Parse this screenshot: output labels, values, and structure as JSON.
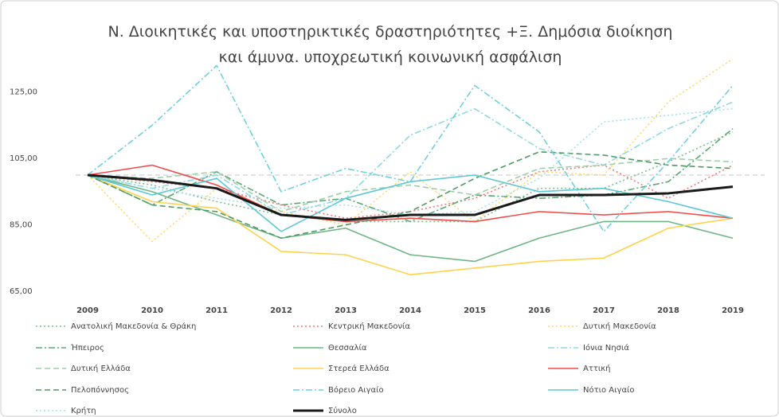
{
  "chart_data": {
    "type": "line",
    "title": "Ν. Διοικητικές και υποστηρικτικές δραστηριότητες +Ξ. Δημόσια διοίκηση και άμυνα. υποχρεωτική κοινωνική ασφάλιση",
    "categories": [
      "2009",
      "2010",
      "2011",
      "2012",
      "2013",
      "2014",
      "2015",
      "2016",
      "2017",
      "2018",
      "2019"
    ],
    "ylim": [
      65,
      135
    ],
    "yticks": [
      {
        "value": 65,
        "label": "65,00"
      },
      {
        "value": 85,
        "label": "85,00"
      },
      {
        "value": 105,
        "label": "105,00"
      },
      {
        "value": 125,
        "label": "125,00"
      }
    ],
    "reference_line": 100,
    "series": [
      {
        "name": "Ανατολική Μακεδονία & Θράκη",
        "color": "#7dbf8e",
        "dash": "2,3",
        "values": [
          100,
          97,
          92,
          88,
          86,
          86,
          86,
          96,
          96,
          104,
          113
        ]
      },
      {
        "name": "Κεντρική Μακεδονία",
        "color": "#f07b7b",
        "dash": "2,3",
        "values": [
          100,
          98,
          96,
          91,
          87,
          89,
          93,
          101,
          103,
          93,
          103
        ]
      },
      {
        "name": "Δυτική Μακεδονία",
        "color": "#ffd966",
        "dash": "2,3",
        "values": [
          100,
          80,
          96,
          89,
          85,
          101,
          86,
          101,
          100,
          122,
          135
        ]
      },
      {
        "name": "Ήπειρος",
        "color": "#5aa874",
        "dash": "8,3,2,3",
        "values": [
          100,
          91,
          101,
          91,
          93,
          86,
          94,
          93,
          94,
          98,
          114
        ]
      },
      {
        "name": "Θεσσαλία",
        "color": "#6fb585",
        "dash": "",
        "values": [
          100,
          95,
          88,
          81,
          84,
          76,
          74,
          81,
          86,
          86,
          81
        ]
      },
      {
        "name": "Ιόνια Νησιά",
        "color": "#8fd8e0",
        "dash": "8,3,2,3",
        "values": [
          100,
          96,
          100,
          88,
          93,
          112,
          120,
          108,
          103,
          114,
          122
        ]
      },
      {
        "name": "Δυτική Ελλάδα",
        "color": "#9ccfa8",
        "dash": "7,4",
        "values": [
          100,
          99,
          101,
          89,
          95,
          97,
          94,
          102,
          103,
          105,
          104
        ]
      },
      {
        "name": "Στερεά Ελλάδα",
        "color": "#ffd24d",
        "dash": "",
        "values": [
          100,
          92,
          90,
          77,
          76,
          70,
          72,
          74,
          75,
          84,
          87
        ]
      },
      {
        "name": "Αττική",
        "color": "#f04b4b",
        "dash": "",
        "values": [
          100,
          103,
          97,
          88,
          86,
          87,
          86,
          89,
          88,
          89,
          87
        ]
      },
      {
        "name": "Πελοπόννησος",
        "color": "#4f9a65",
        "dash": "7,4",
        "values": [
          100,
          91,
          89,
          81,
          85,
          89,
          99,
          107,
          106,
          103,
          102
        ]
      },
      {
        "name": "Βόρειο Αιγαίο",
        "color": "#6fd0dc",
        "dash": "8,3,2,3",
        "values": [
          100,
          115,
          133,
          95,
          102,
          98,
          127,
          113,
          83,
          104,
          127
        ]
      },
      {
        "name": "Νότιο Αιγαίο",
        "color": "#5cc8d6",
        "dash": "",
        "values": [
          100,
          94,
          99,
          83,
          93,
          98,
          100,
          95,
          96,
          92,
          87
        ]
      },
      {
        "name": "Κρήτη",
        "color": "#a3e2ea",
        "dash": "2,3",
        "values": [
          100,
          96,
          93,
          90,
          91,
          88,
          89,
          99,
          116,
          118,
          120
        ]
      },
      {
        "name": "Σύνολο",
        "color": "#1a1a1a",
        "dash": "",
        "width": 3,
        "values": [
          100,
          98.5,
          96,
          88,
          86.5,
          88,
          88,
          94,
          94,
          94.5,
          96.5
        ]
      }
    ]
  }
}
